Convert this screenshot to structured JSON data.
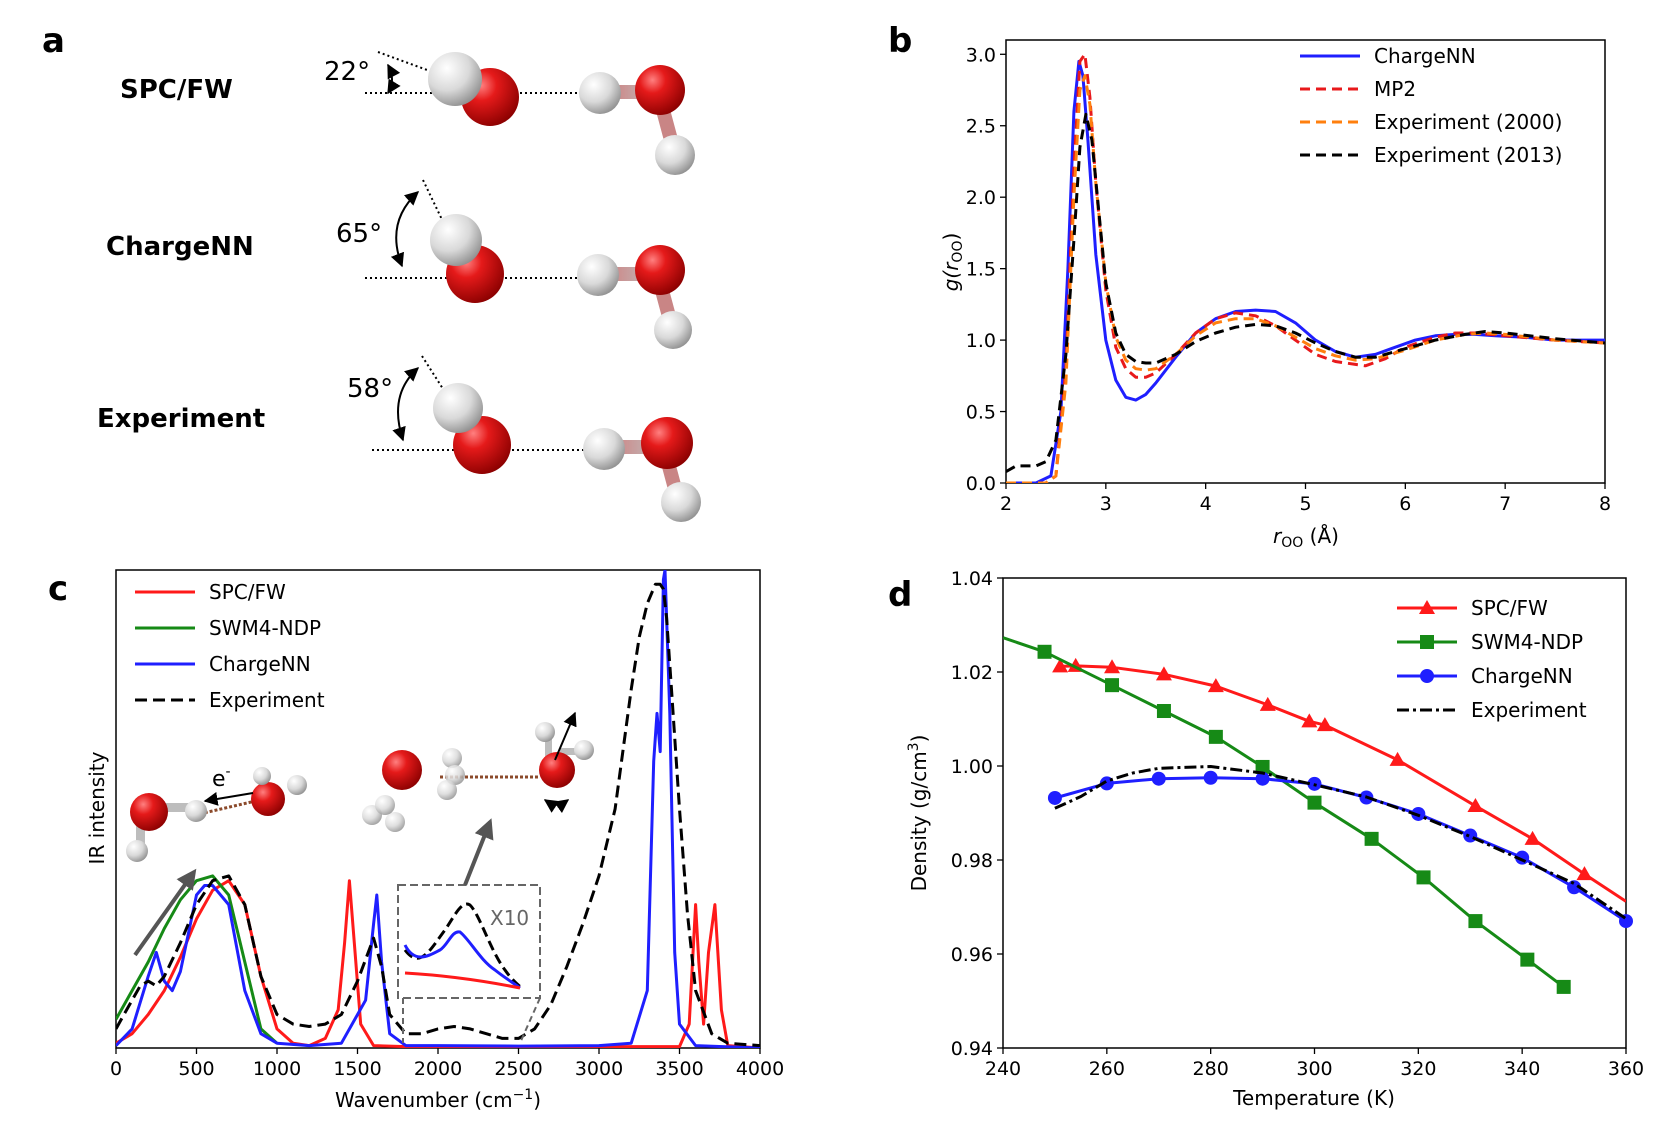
{
  "panel_a": {
    "letter": "a",
    "rows": [
      {
        "label": "SPC/FW",
        "angle": "22°"
      },
      {
        "label": "ChargeNN",
        "angle": "65°"
      },
      {
        "label": "Experiment",
        "angle": "58°"
      }
    ]
  },
  "chart_data": [
    {
      "id": "b",
      "letter": "b",
      "type": "line",
      "xlabel": "r_OO (Å)",
      "ylabel": "g(r_OO)",
      "xlim": [
        2,
        8
      ],
      "ylim": [
        0,
        3.1
      ],
      "xticks": [
        "2",
        "3",
        "4",
        "5",
        "6",
        "7",
        "8"
      ],
      "yticks": [
        "0.0",
        "0.5",
        "1.0",
        "1.5",
        "2.0",
        "2.5",
        "3.0"
      ],
      "legend": "top-right",
      "series": [
        {
          "name": "ChargeNN",
          "color": "#1f1fff",
          "dash": "solid",
          "x": [
            2.0,
            2.3,
            2.45,
            2.55,
            2.62,
            2.68,
            2.73,
            2.77,
            2.82,
            2.9,
            3.0,
            3.1,
            3.2,
            3.3,
            3.4,
            3.5,
            3.7,
            3.9,
            4.1,
            4.3,
            4.5,
            4.7,
            4.9,
            5.1,
            5.3,
            5.5,
            5.7,
            5.9,
            6.1,
            6.3,
            6.5,
            6.7,
            6.9,
            7.2,
            7.5,
            7.8,
            8.0
          ],
          "y": [
            0,
            0,
            0.05,
            0.5,
            1.5,
            2.6,
            2.95,
            2.85,
            2.4,
            1.6,
            1.0,
            0.72,
            0.6,
            0.58,
            0.62,
            0.7,
            0.88,
            1.05,
            1.15,
            1.2,
            1.21,
            1.2,
            1.12,
            1.0,
            0.92,
            0.88,
            0.9,
            0.95,
            1.0,
            1.03,
            1.04,
            1.04,
            1.03,
            1.02,
            1.0,
            1.0,
            1.0
          ]
        },
        {
          "name": "MP2",
          "color": "#e8191b",
          "dash": "10,6",
          "x": [
            2.0,
            2.4,
            2.5,
            2.6,
            2.68,
            2.74,
            2.79,
            2.84,
            2.9,
            3.0,
            3.1,
            3.2,
            3.3,
            3.4,
            3.5,
            3.7,
            3.9,
            4.1,
            4.3,
            4.5,
            4.7,
            4.9,
            5.1,
            5.3,
            5.5,
            5.6,
            5.8,
            6.0,
            6.3,
            6.5,
            6.7,
            7.0,
            7.5,
            8.0
          ],
          "y": [
            0,
            0,
            0.05,
            0.8,
            2.2,
            2.95,
            3.0,
            2.7,
            2.1,
            1.35,
            0.95,
            0.8,
            0.74,
            0.74,
            0.77,
            0.9,
            1.05,
            1.15,
            1.19,
            1.17,
            1.1,
            1.0,
            0.9,
            0.85,
            0.83,
            0.82,
            0.87,
            0.95,
            1.02,
            1.05,
            1.05,
            1.03,
            1.0,
            0.98
          ]
        },
        {
          "name": "Experiment (2000)",
          "color": "#ff7f0e",
          "dash": "10,6",
          "x": [
            2.0,
            2.4,
            2.5,
            2.6,
            2.68,
            2.74,
            2.79,
            2.84,
            2.9,
            3.0,
            3.1,
            3.2,
            3.3,
            3.4,
            3.5,
            3.7,
            3.9,
            4.1,
            4.3,
            4.5,
            4.7,
            4.9,
            5.1,
            5.3,
            5.5,
            5.7,
            6.0,
            6.3,
            6.6,
            6.8,
            7.0,
            7.5,
            8.0
          ],
          "y": [
            0,
            0,
            0.05,
            0.7,
            2.0,
            2.75,
            2.85,
            2.65,
            2.1,
            1.4,
            1.02,
            0.86,
            0.8,
            0.79,
            0.8,
            0.9,
            1.03,
            1.12,
            1.15,
            1.15,
            1.1,
            1.02,
            0.94,
            0.89,
            0.86,
            0.87,
            0.93,
            1.0,
            1.04,
            1.05,
            1.04,
            1.0,
            0.98
          ]
        },
        {
          "name": "Experiment (2013)",
          "color": "#000000",
          "dash": "10,6",
          "x": [
            2.0,
            2.1,
            2.3,
            2.4,
            2.5,
            2.6,
            2.68,
            2.74,
            2.8,
            2.86,
            2.93,
            3.0,
            3.1,
            3.2,
            3.3,
            3.4,
            3.5,
            3.7,
            3.9,
            4.1,
            4.3,
            4.5,
            4.7,
            4.9,
            5.1,
            5.3,
            5.5,
            5.7,
            6.0,
            6.3,
            6.6,
            6.8,
            7.0,
            7.5,
            8.0
          ],
          "y": [
            0.08,
            0.12,
            0.12,
            0.15,
            0.3,
            0.9,
            1.7,
            2.35,
            2.58,
            2.4,
            1.9,
            1.4,
            1.05,
            0.9,
            0.85,
            0.84,
            0.84,
            0.9,
            0.99,
            1.05,
            1.09,
            1.11,
            1.1,
            1.05,
            0.98,
            0.92,
            0.88,
            0.88,
            0.94,
            1.0,
            1.04,
            1.06,
            1.05,
            1.01,
            0.98
          ]
        }
      ]
    },
    {
      "id": "c",
      "letter": "c",
      "type": "line",
      "xlabel": "Wavenumber (cm⁻¹)",
      "ylabel": "IR intensity",
      "xlim": [
        0,
        4000
      ],
      "ylim": [
        0,
        1.0
      ],
      "xticks": [
        "0",
        "500",
        "1000",
        "1500",
        "2000",
        "2500",
        "3000",
        "3500",
        "4000"
      ],
      "legend": "top-left",
      "inset_label": "X10",
      "electron_label": "e",
      "electron_sup": "-",
      "series": [
        {
          "name": "SPC/FW",
          "color": "#ff1a1a",
          "dash": "solid",
          "x": [
            0,
            100,
            200,
            300,
            400,
            500,
            600,
            700,
            800,
            900,
            1000,
            1100,
            1200,
            1300,
            1380,
            1420,
            1450,
            1480,
            1520,
            1600,
            1800,
            2000,
            2500,
            3000,
            3500,
            3560,
            3600,
            3620,
            3650,
            3680,
            3720,
            3760,
            3800,
            4000
          ],
          "y": [
            0.01,
            0.03,
            0.07,
            0.12,
            0.19,
            0.27,
            0.33,
            0.35,
            0.3,
            0.15,
            0.04,
            0.01,
            0.005,
            0.02,
            0.08,
            0.22,
            0.35,
            0.22,
            0.05,
            0.005,
            0.003,
            0.003,
            0.003,
            0.003,
            0.003,
            0.05,
            0.3,
            0.18,
            0.05,
            0.2,
            0.3,
            0.08,
            0.005,
            0.0
          ]
        },
        {
          "name": "SWM4-NDP",
          "color": "#168a16",
          "dash": "solid",
          "x": [
            0,
            100,
            200,
            300,
            400,
            500,
            600,
            700,
            800,
            900,
            1000
          ],
          "y": [
            0.06,
            0.12,
            0.18,
            0.25,
            0.31,
            0.35,
            0.36,
            0.32,
            0.18,
            0.04,
            0.01
          ]
        },
        {
          "name": "ChargeNN",
          "color": "#1f1fff",
          "dash": "solid",
          "x": [
            0,
            100,
            200,
            250,
            300,
            350,
            400,
            500,
            550,
            600,
            700,
            800,
            900,
            1000,
            1200,
            1400,
            1550,
            1600,
            1620,
            1650,
            1700,
            1800,
            2000,
            2500,
            3000,
            3200,
            3300,
            3340,
            3360,
            3380,
            3400,
            3410,
            3440,
            3470,
            3500,
            3600,
            4000
          ],
          "y": [
            0.005,
            0.04,
            0.15,
            0.2,
            0.14,
            0.12,
            0.16,
            0.32,
            0.34,
            0.34,
            0.3,
            0.12,
            0.03,
            0.01,
            0.005,
            0.01,
            0.1,
            0.26,
            0.32,
            0.18,
            0.03,
            0.005,
            0.005,
            0.004,
            0.005,
            0.01,
            0.12,
            0.6,
            0.7,
            0.62,
            0.98,
            1.0,
            0.7,
            0.2,
            0.05,
            0.005,
            0.0
          ]
        },
        {
          "name": "Experiment",
          "color": "#000000",
          "dash": "12,6",
          "x": [
            0,
            50,
            100,
            150,
            200,
            250,
            300,
            400,
            500,
            600,
            700,
            800,
            900,
            1000,
            1100,
            1200,
            1300,
            1400,
            1500,
            1600,
            1650,
            1700,
            1800,
            1900,
            2000,
            2100,
            2200,
            2300,
            2400,
            2500,
            2600,
            2700,
            2800,
            2900,
            3000,
            3100,
            3200,
            3250,
            3300,
            3350,
            3380,
            3400,
            3420,
            3450,
            3500,
            3550,
            3600,
            3700,
            3800,
            4000
          ],
          "y": [
            0.04,
            0.07,
            0.1,
            0.13,
            0.14,
            0.13,
            0.15,
            0.22,
            0.3,
            0.35,
            0.36,
            0.3,
            0.15,
            0.07,
            0.05,
            0.045,
            0.05,
            0.07,
            0.14,
            0.23,
            0.17,
            0.07,
            0.03,
            0.03,
            0.04,
            0.045,
            0.04,
            0.03,
            0.02,
            0.02,
            0.04,
            0.09,
            0.17,
            0.26,
            0.36,
            0.5,
            0.75,
            0.86,
            0.93,
            0.97,
            0.97,
            0.96,
            0.9,
            0.75,
            0.5,
            0.28,
            0.12,
            0.03,
            0.01,
            0.005
          ]
        }
      ]
    },
    {
      "id": "d",
      "letter": "d",
      "type": "line",
      "xlabel": "Temperature (K)",
      "ylabel": "Density (g/cm³)",
      "xlim": [
        240,
        360
      ],
      "ylim": [
        0.94,
        1.04
      ],
      "xticks": [
        "240",
        "260",
        "280",
        "300",
        "320",
        "340",
        "360"
      ],
      "yticks": [
        "0.94",
        "0.96",
        "0.98",
        "1.00",
        "1.02",
        "1.04"
      ],
      "legend": "top-right",
      "series": [
        {
          "name": "SPC/FW",
          "color": "#ff1a1a",
          "dash": "solid",
          "marker": "triangle",
          "x": [
            251,
            254,
            261,
            271,
            281,
            291,
            299,
            302,
            316,
            331,
            342,
            352,
            360
          ],
          "y": [
            1.0212,
            1.0213,
            1.021,
            1.0195,
            1.017,
            1.013,
            1.0095,
            1.0087,
            1.0013,
            0.9915,
            0.9845,
            0.977,
            0.9712
          ],
          "marker_x": [
            251,
            254,
            261,
            271,
            281,
            291,
            299,
            302,
            316,
            331,
            342,
            352
          ]
        },
        {
          "name": "SWM4-NDP",
          "color": "#168a16",
          "dash": "solid",
          "marker": "square",
          "x": [
            240,
            248,
            261,
            271,
            281,
            290,
            300,
            311,
            321,
            331,
            341,
            348
          ],
          "y": [
            1.0273,
            1.0243,
            1.0172,
            1.0117,
            1.0062,
            0.9998,
            0.9922,
            0.9845,
            0.9763,
            0.967,
            0.9588,
            0.953
          ],
          "marker_x": [
            248,
            261,
            271,
            281,
            290,
            300,
            311,
            321,
            331,
            341,
            348
          ]
        },
        {
          "name": "ChargeNN",
          "color": "#1f1fff",
          "dash": "solid",
          "marker": "circle",
          "x": [
            250,
            260,
            270,
            280,
            290,
            300,
            310,
            320,
            330,
            340,
            350,
            360
          ],
          "y": [
            0.9932,
            0.9963,
            0.9973,
            0.9975,
            0.9973,
            0.9962,
            0.9933,
            0.9898,
            0.9852,
            0.9805,
            0.9742,
            0.967
          ],
          "marker_x": [
            250,
            260,
            270,
            280,
            290,
            300,
            310,
            320,
            330,
            340,
            350,
            360
          ]
        },
        {
          "name": "Experiment",
          "color": "#000000",
          "dash": "12,4,3,4",
          "marker": "none",
          "x": [
            250,
            255,
            260,
            265,
            270,
            280,
            290,
            300,
            310,
            320,
            330,
            340,
            350,
            360
          ],
          "y": [
            0.991,
            0.9935,
            0.9968,
            0.9985,
            0.9995,
            0.9999,
            0.9985,
            0.996,
            0.9934,
            0.9895,
            0.985,
            0.98,
            0.975,
            0.9675
          ]
        }
      ]
    }
  ]
}
